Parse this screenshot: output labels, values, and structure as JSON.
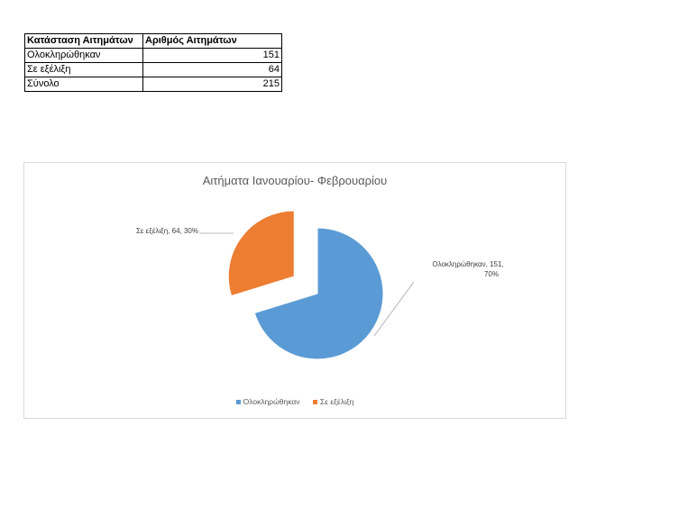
{
  "table": {
    "headers": [
      "Κατάσταση Αιτημάτων",
      "Αριθμός Αιτημάτων"
    ],
    "rows": [
      {
        "label": "Ολοκληρώθηκαν",
        "value": "151"
      },
      {
        "label": "Σε εξέλιξη",
        "value": "64"
      },
      {
        "label": "Σύνολο",
        "value": "215"
      }
    ]
  },
  "chart_data": {
    "type": "pie",
    "title": "Αιτήματα Ιανουαρίου- Φεβρουαρίου",
    "exploded": true,
    "slices": [
      {
        "name": "Ολοκληρώθηκαν",
        "value": 151,
        "percent": "70%",
        "color": "#5b9bd5",
        "label_line1": "Ολοκληρώθηκαν, 151,",
        "label_line2": "70%"
      },
      {
        "name": "Σε εξέλιξη",
        "value": 64,
        "percent": "30%",
        "color": "#ed7d31",
        "label_line1": "Σε εξέλιξη, 64, 30%",
        "label_line2": ""
      }
    ],
    "legend": {
      "placement": "bottom",
      "items": [
        {
          "name": "Ολοκληρώθηκαν",
          "color": "#5b9bd5"
        },
        {
          "name": "Σε εξέλιξη",
          "color": "#ed7d31"
        }
      ]
    }
  }
}
